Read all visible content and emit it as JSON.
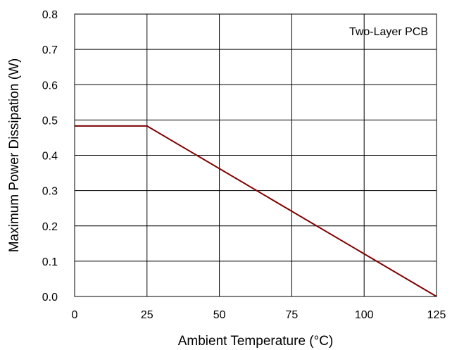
{
  "chart_data": {
    "type": "line",
    "title": "",
    "xlabel": "Ambient Temperature (°C)",
    "ylabel": "Maximum Power Dissipation (W)",
    "annotation": "Two-Layer PCB",
    "xlim": [
      0,
      125
    ],
    "ylim": [
      0,
      0.8
    ],
    "x_ticks": [
      "0",
      "25",
      "50",
      "75",
      "100",
      "125"
    ],
    "y_ticks": [
      "0.0",
      "0.1",
      "0.2",
      "0.3",
      "0.4",
      "0.5",
      "0.6",
      "0.7",
      "0.8"
    ],
    "x_tick_values": [
      0,
      25,
      50,
      75,
      100,
      125
    ],
    "y_tick_values": [
      0,
      0.1,
      0.2,
      0.3,
      0.4,
      0.5,
      0.6,
      0.7,
      0.8
    ],
    "grid": true,
    "line_color": "#800000",
    "series": [
      {
        "x": [
          0,
          25,
          125
        ],
        "y": [
          0.483,
          0.483,
          0
        ]
      }
    ]
  }
}
